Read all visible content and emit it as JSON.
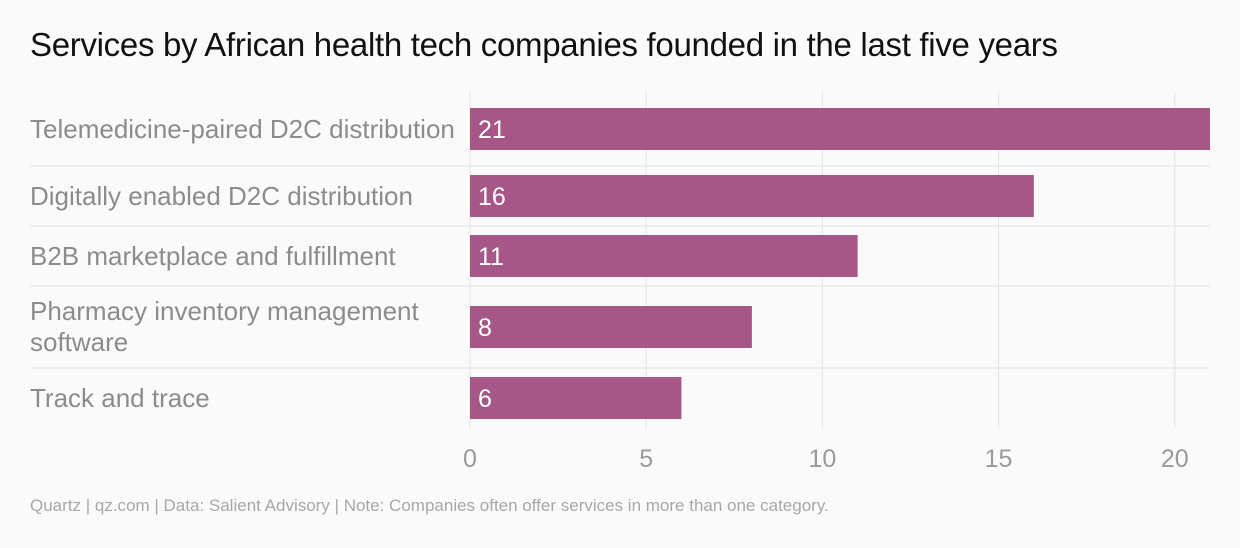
{
  "title": "Services by African health tech companies founded in the last five years",
  "footer": "Quartz | qz.com | Data: Salient Advisory | Note: Companies often offer services in more than one category.",
  "chart_data": {
    "type": "bar",
    "orientation": "horizontal",
    "title": "Services by African health tech companies founded in the last five years",
    "categories": [
      "Telemedicine-paired D2C distribution",
      "Digitally enabled D2C distribution",
      "B2B marketplace and fulfillment",
      "Pharmacy inventory management software",
      "Track and trace"
    ],
    "values": [
      21,
      16,
      11,
      8,
      6
    ],
    "data_labels": [
      "21",
      "16",
      "11",
      "8",
      "6"
    ],
    "xlim": [
      0,
      21
    ],
    "xticks": [
      0,
      5,
      10,
      15,
      20
    ],
    "xtick_labels": [
      "0",
      "5",
      "10",
      "15",
      "20"
    ],
    "grid": true,
    "bar_color": "#a65787",
    "grid_color": "#e3e3e3"
  }
}
